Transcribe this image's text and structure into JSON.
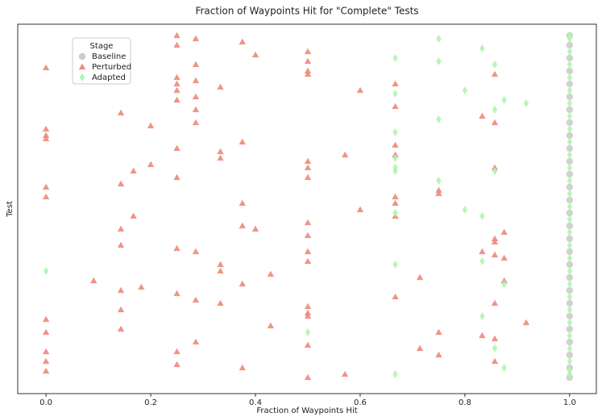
{
  "chart_data": {
    "type": "scatter",
    "title": "Fraction of Waypoints Hit for \"Complete\" Tests",
    "x_label": "Fraction of Waypoints Hit",
    "y_label": "Test",
    "legend_title": "Stage",
    "legend_position": "upper left",
    "xlim": [
      -0.054,
      1.051
    ],
    "ylim": [
      0,
      114.5
    ],
    "xticks": [
      {
        "value": 0,
        "label": "0.0"
      },
      0.2,
      0.4,
      0.6,
      0.8,
      {
        "value": 1,
        "label": "1.0"
      }
    ],
    "series": [
      {
        "name": "Baseline",
        "color": "#cccccc",
        "marker": "circle",
        "x": [
          1,
          1,
          1,
          1,
          1,
          1,
          1,
          1,
          1,
          1,
          1,
          1,
          1,
          1,
          1,
          1,
          1,
          1,
          1,
          1,
          1,
          1,
          1,
          1,
          1,
          1,
          1,
          1
        ],
        "values": [
          5,
          8,
          12,
          16,
          20,
          24,
          28,
          32,
          36,
          40,
          44,
          48,
          52,
          56,
          60,
          64,
          68,
          72,
          76,
          80,
          84,
          88,
          92,
          96,
          100,
          104,
          108,
          111
        ]
      },
      {
        "name": "Perturbed",
        "color": "#ec8a7a",
        "marker": "triangle",
        "x": [
          0,
          0.25,
          0.286,
          0.375,
          0.4,
          0.5,
          0.5,
          0.5,
          0.5,
          0.25,
          0.286,
          0.25,
          0.25,
          0.286,
          0.333,
          0.25,
          0.25,
          0.286,
          0.286,
          0.286,
          0.143,
          0.2,
          0,
          0,
          0,
          0.25,
          0.333,
          0.333,
          0.375,
          0.2,
          0.167,
          0.25,
          0.143,
          0,
          0,
          0.571,
          0.5,
          0.5,
          0.5,
          0.6,
          0.667,
          0.667,
          0.667,
          0.667,
          0.667,
          0.667,
          0.667,
          0.6,
          0.75,
          0.75,
          0.833,
          0.857,
          0.857,
          0.857,
          0.167,
          0.143,
          0.143,
          0.375,
          0.375,
          0.4,
          0.5,
          0.5,
          0.5,
          0.5,
          0.25,
          0.286,
          0.333,
          0.333,
          0.429,
          0.375,
          0.091,
          0.182,
          0.143,
          0.25,
          0.286,
          0.333,
          0.143,
          0.143,
          0.5,
          0.5,
          0.5,
          0.429,
          0.286,
          0.25,
          0.25,
          0.375,
          0.5,
          0.5,
          0.571,
          0,
          0,
          0,
          0,
          0,
          0.667,
          0.714,
          0.714,
          0.75,
          0.75,
          0.833,
          0.857,
          0.857,
          0.857,
          0.917,
          0.857,
          0.857,
          0.875,
          0.875,
          0.857,
          0.875,
          0.833
        ],
        "values": [
          101,
          111,
          110,
          109,
          105,
          106,
          103,
          100,
          99,
          108,
          102,
          98,
          96,
          97,
          95,
          94,
          91,
          92,
          88,
          84,
          87,
          83,
          82,
          80,
          79,
          76,
          75,
          73,
          78,
          71,
          69,
          67,
          65,
          64,
          61,
          74,
          72,
          70,
          67,
          94,
          96,
          89,
          77,
          74,
          61,
          59,
          55,
          57,
          63,
          62,
          86,
          99,
          84,
          70,
          55,
          51,
          46,
          59,
          52,
          51,
          53,
          49,
          44,
          41,
          45,
          44,
          40,
          38,
          37,
          34,
          35,
          33,
          32,
          31,
          29,
          28,
          26,
          20,
          27,
          25,
          24,
          21,
          16,
          13,
          9,
          8,
          15,
          5,
          6,
          23,
          19,
          13,
          10,
          7,
          30,
          36,
          14,
          19,
          12,
          18,
          28,
          17,
          10,
          22,
          48,
          43,
          50,
          42,
          47,
          35,
          44
        ]
      },
      {
        "name": "Adapted",
        "color": "#aef5ae",
        "marker": "diamond",
        "x": [
          0,
          0.667,
          0.75,
          0.75,
          0.833,
          0.857,
          0.8,
          0.875,
          0.857,
          0.917,
          0.75,
          0.667,
          0.667,
          0.667,
          0.667,
          0.667,
          0.75,
          0.667,
          0.8,
          0.833,
          0.857,
          0.667,
          0.833,
          0.875,
          0.833,
          0.5,
          0.857,
          0.875,
          0.667,
          1,
          1,
          1,
          1,
          1,
          1,
          1,
          1,
          1,
          1,
          1,
          1,
          1,
          1,
          1,
          1,
          1,
          1,
          1,
          1,
          1,
          1,
          1,
          1,
          1,
          1,
          1,
          1,
          1
        ],
        "values": [
          38,
          104,
          110,
          103,
          107,
          102,
          94,
          91,
          88,
          90,
          85,
          93,
          81,
          73,
          70,
          69,
          66,
          56,
          57,
          55,
          69,
          40,
          41,
          34,
          24,
          19,
          14,
          8,
          6,
          6,
          7,
          10,
          14,
          18,
          22,
          26,
          30,
          34,
          38,
          42,
          46,
          50,
          54,
          58,
          62,
          66,
          70,
          74,
          78,
          82,
          86,
          90,
          94,
          98,
          102,
          106,
          110,
          111
        ]
      }
    ]
  }
}
